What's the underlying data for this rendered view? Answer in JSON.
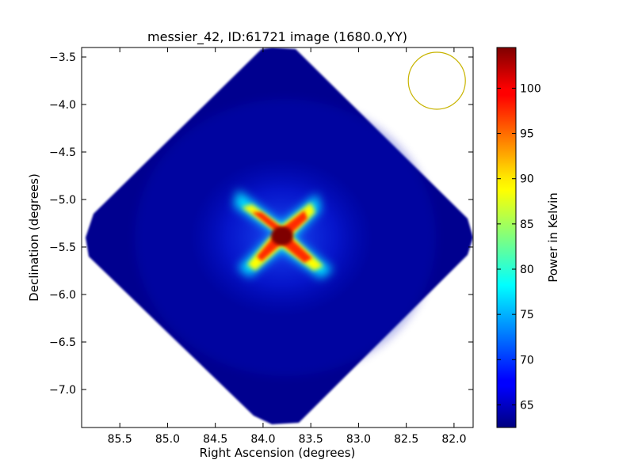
{
  "chart_data": {
    "type": "heatmap",
    "title": "messier_42, ID:61721 image (1680.0,YY)",
    "xlabel": "Right Ascension (degrees)",
    "ylabel": "Declination (degrees)",
    "xlim": [
      85.9,
      81.8
    ],
    "ylim": [
      -7.4,
      -3.4
    ],
    "x_ticks": [
      85.5,
      85.0,
      84.5,
      84.0,
      83.5,
      83.0,
      82.5,
      82.0
    ],
    "x_tick_labels": [
      "85.5",
      "85.0",
      "84.5",
      "84.0",
      "83.5",
      "83.0",
      "82.5",
      "82.0"
    ],
    "y_ticks": [
      -3.5,
      -4.0,
      -4.5,
      -5.0,
      -5.5,
      -6.0,
      -6.5,
      -7.0
    ],
    "y_tick_labels": [
      "−3.5",
      "−4.0",
      "−4.5",
      "−5.0",
      "−5.5",
      "−6.0",
      "−6.5",
      "−7.0"
    ],
    "colorbar": {
      "label": "Power in Kelvin",
      "colormap": "jet",
      "min": 62.5,
      "max": 104.5,
      "ticks": [
        65,
        70,
        75,
        80,
        85,
        90,
        95,
        100
      ],
      "tick_labels": [
        "65",
        "70",
        "75",
        "80",
        "85",
        "90",
        "95",
        "100"
      ]
    },
    "image_footprint": {
      "shape": "diamond",
      "corners": [
        {
          "ra": 83.85,
          "dec": -3.4
        },
        {
          "ra": 81.85,
          "dec": -5.38
        },
        {
          "ra": 83.78,
          "dec": -7.38
        },
        {
          "ra": 85.85,
          "dec": -5.38
        }
      ],
      "background_value": 64
    },
    "peak": {
      "ra": 83.82,
      "dec": -5.38,
      "value": 104.5
    },
    "beam_circle": {
      "center_ra": 82.18,
      "center_dec": -3.75,
      "radius_dec": 0.3,
      "color": "#c8b400"
    },
    "grid": false
  }
}
